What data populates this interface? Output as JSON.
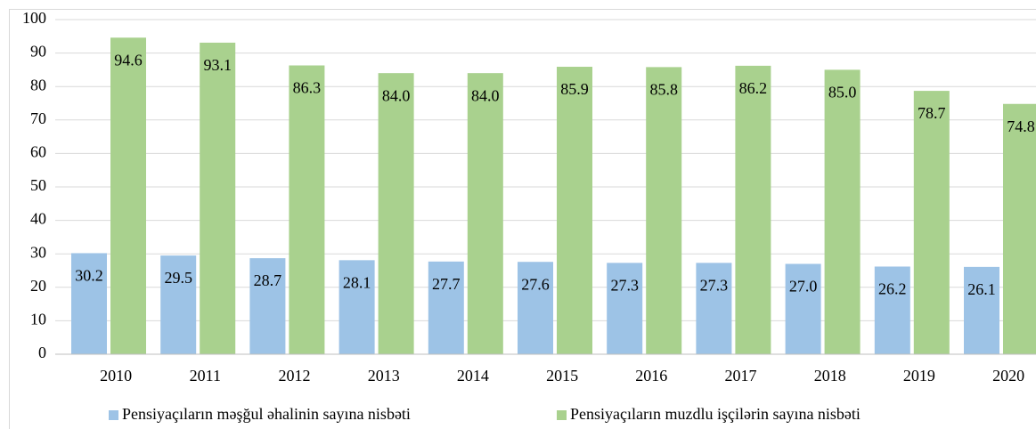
{
  "chart_data": {
    "type": "bar",
    "categories": [
      "2010",
      "2011",
      "2012",
      "2013",
      "2014",
      "2015",
      "2016",
      "2017",
      "2018",
      "2019",
      "2020"
    ],
    "series": [
      {
        "name": "Pensiyaçıların məşğul əhalinin sayına nisbəti",
        "color": "#9dc3e6",
        "values": [
          30.2,
          29.5,
          28.7,
          28.1,
          27.7,
          27.6,
          27.3,
          27.3,
          27.0,
          26.2,
          26.1
        ],
        "value_labels": [
          "30.2",
          "29.5",
          "28.7",
          "28.1",
          "27.7",
          "27.6",
          "27.3",
          "27.3",
          "27.0",
          "26.2",
          "26.1"
        ]
      },
      {
        "name": "Pensiyaçıların muzdlu işçilərin sayına nisbəti",
        "color": "#a9d18e",
        "values": [
          94.6,
          93.1,
          86.3,
          84.0,
          84.0,
          85.9,
          85.8,
          86.2,
          85.0,
          78.7,
          74.8
        ],
        "value_labels": [
          "94.6",
          "93.1",
          "86.3",
          "84.0",
          "84.0",
          "85.9",
          "85.8",
          "86.2",
          "85.0",
          "78.7",
          "74.8"
        ]
      }
    ],
    "ylim": [
      0,
      100
    ],
    "yticks": [
      0,
      10,
      20,
      30,
      40,
      50,
      60,
      70,
      80,
      90,
      100
    ],
    "grid": true,
    "legend": "bottom"
  }
}
